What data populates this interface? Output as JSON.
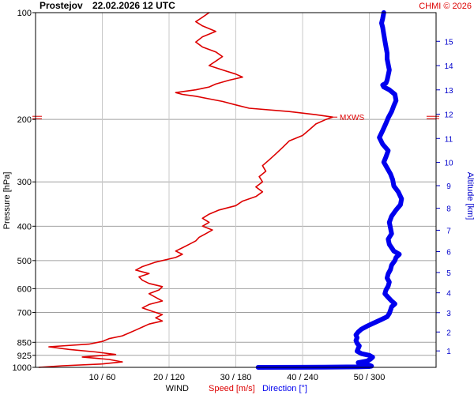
{
  "header": {
    "station": "Prostejov",
    "datetime": "22.02.2026 12 UTC",
    "credit": "CHMI © 2026"
  },
  "colors": {
    "speed": "#dd0000",
    "direction": "#0000ee",
    "grid": "#a0a0a0",
    "axis": "#000000",
    "credit": "#dd0000",
    "altitude_axis": "#0000cc"
  },
  "chart_data": {
    "type": "line",
    "y_axis": {
      "label": "Pressure [hPa]",
      "scale": "log",
      "range": [
        100,
        1000
      ],
      "ticks": [
        100,
        200,
        300,
        400,
        500,
        600,
        700,
        850,
        925,
        1000
      ]
    },
    "x_axis": {
      "title": "WIND",
      "speed_label": "Speed [m/s]",
      "direction_label": "Direction [°]",
      "range_speed": [
        0,
        60
      ],
      "range_direction": [
        0,
        360
      ],
      "ticks": [
        {
          "speed": 10,
          "direction": 60,
          "label": "10 / 60"
        },
        {
          "speed": 20,
          "direction": 120,
          "label": "20 / 120"
        },
        {
          "speed": 30,
          "direction": 180,
          "label": "30 / 180"
        },
        {
          "speed": 40,
          "direction": 240,
          "label": "40 / 240"
        },
        {
          "speed": 50,
          "direction": 300,
          "label": "50 / 300"
        }
      ]
    },
    "right_axis": {
      "label": "Altitude [km]",
      "ticks": [
        1,
        2,
        3,
        4,
        5,
        6,
        7,
        8,
        9,
        10,
        11,
        12,
        13,
        14,
        15
      ]
    },
    "annotation": {
      "label": "MXWS",
      "pressure": 197
    },
    "grid": true,
    "series": [
      {
        "key": "speed",
        "points": [
          [
            1000,
            0.5
          ],
          [
            990,
            4
          ],
          [
            978,
            10
          ],
          [
            965,
            13
          ],
          [
            950,
            11
          ],
          [
            935,
            7
          ],
          [
            920,
            12
          ],
          [
            905,
            9
          ],
          [
            890,
            5
          ],
          [
            875,
            2
          ],
          [
            860,
            8
          ],
          [
            845,
            10
          ],
          [
            830,
            11
          ],
          [
            815,
            13
          ],
          [
            800,
            14
          ],
          [
            785,
            15
          ],
          [
            770,
            16
          ],
          [
            755,
            17
          ],
          [
            740,
            19
          ],
          [
            725,
            18
          ],
          [
            710,
            19
          ],
          [
            695,
            17.5
          ],
          [
            680,
            16
          ],
          [
            665,
            17
          ],
          [
            650,
            19
          ],
          [
            635,
            18
          ],
          [
            620,
            17
          ],
          [
            605,
            18.5
          ],
          [
            592,
            19
          ],
          [
            580,
            17
          ],
          [
            568,
            16
          ],
          [
            556,
            15.5
          ],
          [
            544,
            17
          ],
          [
            532,
            15
          ],
          [
            520,
            16
          ],
          [
            505,
            18
          ],
          [
            490,
            21
          ],
          [
            480,
            22
          ],
          [
            470,
            21
          ],
          [
            460,
            22
          ],
          [
            450,
            23
          ],
          [
            440,
            24
          ],
          [
            430,
            24.5
          ],
          [
            420,
            25.5
          ],
          [
            410,
            26.5
          ],
          [
            400,
            25
          ],
          [
            390,
            26
          ],
          [
            380,
            25
          ],
          [
            370,
            26
          ],
          [
            360,
            27.5
          ],
          [
            350,
            30
          ],
          [
            340,
            31
          ],
          [
            330,
            33
          ],
          [
            320,
            34
          ],
          [
            310,
            33
          ],
          [
            300,
            34
          ],
          [
            290,
            33.5
          ],
          [
            280,
            34.5
          ],
          [
            270,
            34
          ],
          [
            260,
            35
          ],
          [
            250,
            36
          ],
          [
            240,
            37
          ],
          [
            230,
            38
          ],
          [
            222,
            40
          ],
          [
            214,
            41
          ],
          [
            206,
            42
          ],
          [
            200,
            43.5
          ],
          [
            197,
            44.5
          ],
          [
            194,
            42
          ],
          [
            190,
            38
          ],
          [
            186,
            32
          ],
          [
            182,
            30
          ],
          [
            178,
            28
          ],
          [
            175,
            26
          ],
          [
            172,
            24
          ],
          [
            170,
            22
          ],
          [
            168,
            21
          ],
          [
            165,
            24
          ],
          [
            162,
            26
          ],
          [
            159,
            27
          ],
          [
            155,
            29
          ],
          [
            152,
            31
          ],
          [
            149,
            30
          ],
          [
            145,
            28
          ],
          [
            141,
            26
          ],
          [
            137,
            27
          ],
          [
            133,
            28
          ],
          [
            129,
            27
          ],
          [
            125,
            25
          ],
          [
            121,
            24
          ],
          [
            117,
            25
          ],
          [
            113,
            27
          ],
          [
            109,
            25
          ],
          [
            106,
            24
          ],
          [
            103,
            25
          ],
          [
            100,
            26
          ]
        ]
      },
      {
        "key": "direction",
        "points": [
          [
            1000,
            200
          ],
          [
            999,
            260
          ],
          [
            997,
            290
          ],
          [
            995,
            300
          ],
          [
            992,
            302
          ],
          [
            986,
            300
          ],
          [
            978,
            295
          ],
          [
            970,
            290
          ],
          [
            960,
            298
          ],
          [
            948,
            301
          ],
          [
            936,
            303
          ],
          [
            925,
            300
          ],
          [
            915,
            293
          ],
          [
            900,
            289
          ],
          [
            885,
            290
          ],
          [
            870,
            291
          ],
          [
            855,
            289
          ],
          [
            840,
            288
          ],
          [
            825,
            289
          ],
          [
            810,
            288
          ],
          [
            795,
            290
          ],
          [
            780,
            293
          ],
          [
            765,
            298
          ],
          [
            750,
            304
          ],
          [
            735,
            310
          ],
          [
            720,
            316
          ],
          [
            705,
            318
          ],
          [
            690,
            319
          ],
          [
            675,
            320
          ],
          [
            662,
            323
          ],
          [
            650,
            320
          ],
          [
            635,
            317
          ],
          [
            620,
            314
          ],
          [
            605,
            315
          ],
          [
            590,
            317
          ],
          [
            575,
            318
          ],
          [
            560,
            316
          ],
          [
            545,
            317
          ],
          [
            530,
            319
          ],
          [
            515,
            320
          ],
          [
            500,
            323
          ],
          [
            490,
            324
          ],
          [
            480,
            327
          ],
          [
            470,
            322
          ],
          [
            460,
            320
          ],
          [
            450,
            318
          ],
          [
            435,
            317
          ],
          [
            420,
            320
          ],
          [
            405,
            319
          ],
          [
            390,
            318
          ],
          [
            375,
            320
          ],
          [
            360,
            324
          ],
          [
            348,
            328
          ],
          [
            335,
            329
          ],
          [
            320,
            326
          ],
          [
            308,
            322
          ],
          [
            296,
            321
          ],
          [
            285,
            319
          ],
          [
            274,
            316
          ],
          [
            264,
            313
          ],
          [
            255,
            315
          ],
          [
            245,
            317
          ],
          [
            235,
            312
          ],
          [
            225,
            309
          ],
          [
            215,
            312
          ],
          [
            205,
            315
          ],
          [
            198,
            317
          ],
          [
            190,
            320
          ],
          [
            183,
            322
          ],
          [
            177,
            324
          ],
          [
            170,
            323
          ],
          [
            165,
            318
          ],
          [
            162,
            313
          ],
          [
            160,
            312
          ],
          [
            158,
            315
          ],
          [
            155,
            316
          ],
          [
            150,
            317
          ],
          [
            145,
            318
          ],
          [
            140,
            317
          ],
          [
            135,
            316
          ],
          [
            130,
            316
          ],
          [
            125,
            315
          ],
          [
            120,
            314
          ],
          [
            115,
            313
          ],
          [
            110,
            312
          ],
          [
            107,
            311
          ],
          [
            104,
            312
          ],
          [
            100,
            313
          ]
        ]
      }
    ]
  }
}
